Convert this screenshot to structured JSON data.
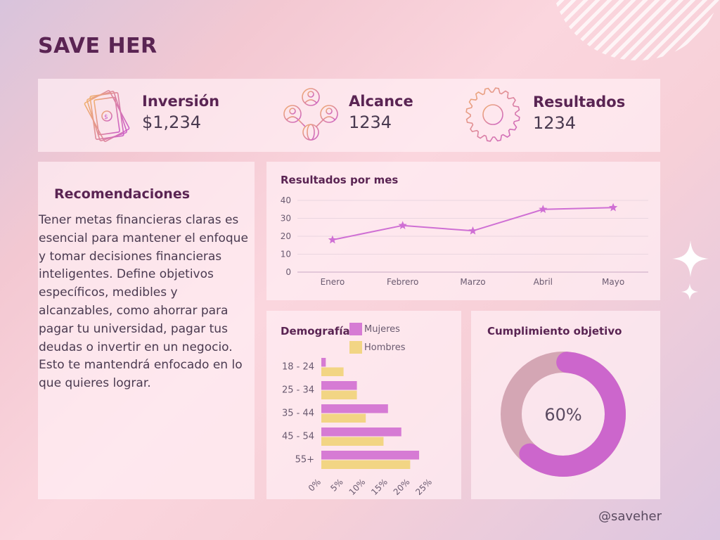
{
  "brand": "SAVE HER",
  "kpis": [
    {
      "label": "Inversión",
      "value": "$1,234",
      "icon": "money-bills-icon"
    },
    {
      "label": "Alcance",
      "value": "1234",
      "icon": "people-network-icon"
    },
    {
      "label": "Resultados",
      "value": "1234",
      "icon": "gear-icon"
    }
  ],
  "recommendations": {
    "title": "Recomendaciones",
    "text": "Tener metas financieras claras es esencial para mantener el enfoque y tomar decisiones financieras inteligentes. Define objetivos específicos, medibles y alcanzables, como ahorrar para pagar tu universidad, pagar tus deudas o invertir en un negocio. Esto te mantendrá enfocado en lo que quieres lograr."
  },
  "colors": {
    "title": "#5a2453",
    "line": "#cf6fd4",
    "mujeres": "#d67bd4",
    "hombres": "#f2d584",
    "donut_fill": "#cc66cc",
    "donut_track": "#d4a6b4"
  },
  "chart_data": [
    {
      "type": "line",
      "title": "Resultados por mes",
      "categories": [
        "Enero",
        "Febrero",
        "Marzo",
        "Abril",
        "Mayo"
      ],
      "series": [
        {
          "values": [
            18,
            26,
            23,
            35,
            36
          ]
        }
      ],
      "ylim": [
        0,
        40
      ],
      "yticks": [
        0,
        10,
        20,
        30,
        40
      ],
      "grid": true,
      "marker": "star"
    },
    {
      "type": "bar",
      "orientation": "horizontal",
      "title": "Demografía",
      "categories": [
        "18 - 24",
        "25 - 34",
        "35 - 44",
        "45 - 54",
        "55+"
      ],
      "series": [
        {
          "name": "Mujeres",
          "values": [
            1,
            8,
            15,
            18,
            22
          ]
        },
        {
          "name": "Hombres",
          "values": [
            5,
            8,
            10,
            14,
            20
          ]
        }
      ],
      "xticks": [
        "0%",
        "5%",
        "10%",
        "15%",
        "20%",
        "25%"
      ],
      "xlim": [
        0,
        25
      ],
      "legend": "top"
    },
    {
      "type": "pie",
      "variant": "donut",
      "title": "Cumplimiento objetivo",
      "value": 60,
      "label": "60%"
    }
  ],
  "handle": "@saveher"
}
